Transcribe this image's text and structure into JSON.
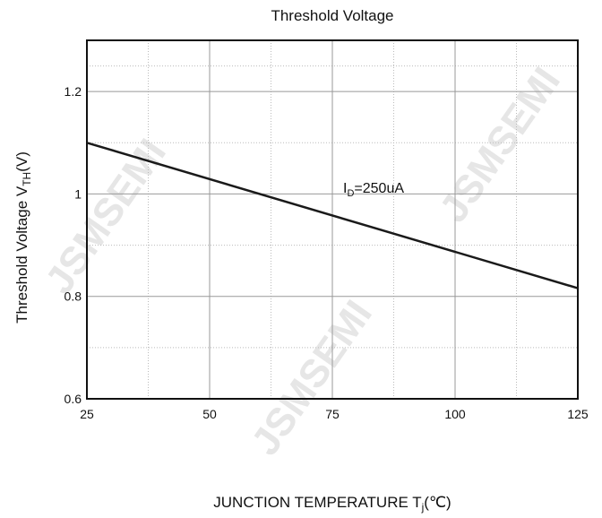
{
  "chart_data": {
    "type": "line",
    "title": "Threshold Voltage",
    "y_label": {
      "main": "Threshold Voltage V",
      "sub": "TH",
      "rest": "(V)"
    },
    "x_label": {
      "main": "JUNCTION TEMPERATURE T",
      "sub": "j",
      "rest": "(℃)"
    },
    "annotation": {
      "main": "I",
      "sub": "D",
      "rest": "=250uA"
    },
    "watermark": "JSMSEMI",
    "x": [
      25,
      125
    ],
    "series": [
      {
        "name": "VTH",
        "color": "#1a1a1a",
        "values": [
          1.1,
          0.816
        ]
      }
    ],
    "xlim": [
      25,
      125
    ],
    "xticks": [
      25,
      50,
      75,
      100,
      125
    ],
    "ylim": [
      0.6,
      1.3
    ],
    "yticks": [
      0.6,
      0.8,
      1.0,
      1.2
    ],
    "grid": true
  }
}
